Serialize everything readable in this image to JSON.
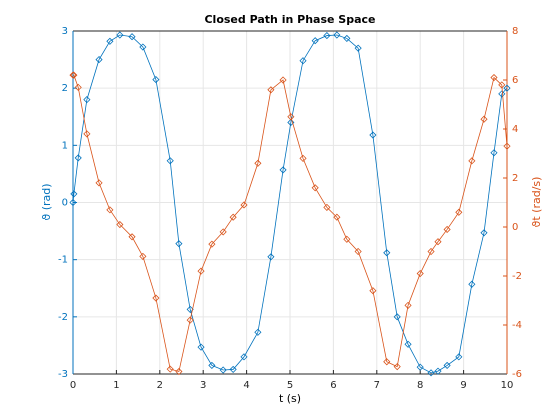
{
  "chart_data": {
    "type": "line",
    "title": "Closed Path in Phase Space",
    "xlabel": "t (s)",
    "ylabel": "ϑ (rad)",
    "y2label": "ϑt (rad/s)",
    "x": [
      0,
      0.02,
      0.12,
      0.32,
      0.6,
      0.85,
      1.08,
      1.36,
      1.61,
      1.91,
      2.24,
      2.44,
      2.7,
      2.95,
      3.2,
      3.46,
      3.69,
      3.94,
      4.26,
      4.56,
      4.84,
      5.02,
      5.3,
      5.58,
      5.85,
      6.08,
      6.31,
      6.57,
      6.91,
      7.23,
      7.47,
      7.72,
      8.0,
      8.25,
      8.41,
      8.62,
      8.89,
      9.19,
      9.47,
      9.7,
      9.88,
      10
    ],
    "series": [
      {
        "name": "ϑ",
        "color": "#0072bd",
        "axis": "y",
        "values": [
          0,
          0.15,
          0.78,
          1.8,
          2.5,
          2.82,
          2.93,
          2.9,
          2.72,
          2.15,
          0.73,
          -0.72,
          -1.87,
          -2.53,
          -2.85,
          -2.93,
          -2.92,
          -2.7,
          -2.27,
          -0.95,
          0.57,
          1.4,
          2.48,
          2.83,
          2.92,
          2.93,
          2.87,
          2.7,
          1.18,
          -0.88,
          -2.0,
          -2.48,
          -2.88,
          -2.98,
          -2.95,
          -2.85,
          -2.7,
          -1.43,
          -0.53,
          0.87,
          1.9,
          2.0
        ]
      },
      {
        "name": "ϑt",
        "color": "#d95319",
        "axis": "y2",
        "values": [
          6.2,
          6.2,
          5.7,
          3.8,
          1.8,
          0.7,
          0.1,
          -0.4,
          -1.2,
          -2.9,
          -5.8,
          -5.9,
          -3.8,
          -1.8,
          -0.7,
          -0.2,
          0.4,
          0.9,
          2.6,
          5.6,
          6.0,
          4.5,
          2.8,
          1.6,
          0.8,
          0.4,
          -0.5,
          -1.0,
          -2.6,
          -5.5,
          -5.7,
          -3.2,
          -1.9,
          -1.0,
          -0.6,
          -0.1,
          0.6,
          2.7,
          4.4,
          6.1,
          5.8,
          3.3
        ]
      }
    ],
    "xlim": [
      0,
      10
    ],
    "xticks": [
      0,
      1,
      2,
      3,
      4,
      5,
      6,
      7,
      8,
      9,
      10
    ],
    "ylim": [
      -3,
      3
    ],
    "yticks": [
      -3,
      -2,
      -1,
      0,
      1,
      2,
      3
    ],
    "y2lim": [
      -6,
      8
    ],
    "y2ticks": [
      -6,
      -4,
      -2,
      0,
      2,
      4,
      6,
      8
    ],
    "grid": true
  }
}
